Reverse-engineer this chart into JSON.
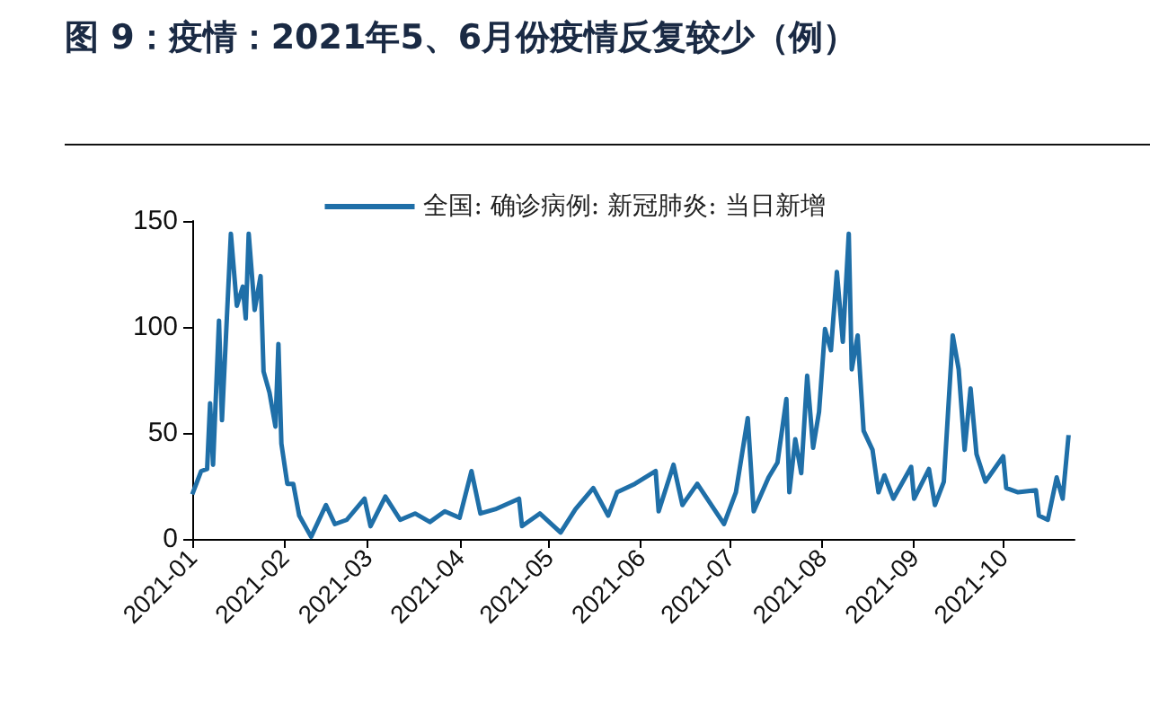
{
  "chart_data": {
    "type": "line",
    "title": "图 9：疫情：2021年5、6月份疫情反复较少（例）",
    "x": [
      "2021-01-01",
      "2021-01-04",
      "2021-01-06",
      "2021-01-07",
      "2021-01-08",
      "2021-01-10",
      "2021-01-11",
      "2021-01-14",
      "2021-01-16",
      "2021-01-18",
      "2021-01-19",
      "2021-01-20",
      "2021-01-22",
      "2021-01-24",
      "2021-01-25",
      "2021-01-27",
      "2021-01-29",
      "2021-01-30",
      "2021-01-31",
      "2021-02-02",
      "2021-02-04",
      "2021-02-06",
      "2021-02-10",
      "2021-02-15",
      "2021-02-18",
      "2021-02-22",
      "2021-02-28",
      "2021-03-02",
      "2021-03-07",
      "2021-03-12",
      "2021-03-17",
      "2021-03-22",
      "2021-03-27",
      "2021-04-01",
      "2021-04-05",
      "2021-04-08",
      "2021-04-13",
      "2021-04-21",
      "2021-04-22",
      "2021-04-28",
      "2021-05-05",
      "2021-05-10",
      "2021-05-16",
      "2021-05-21",
      "2021-05-24",
      "2021-05-30",
      "2021-06-06",
      "2021-06-07",
      "2021-06-12",
      "2021-06-15",
      "2021-06-20",
      "2021-06-29",
      "2021-07-03",
      "2021-07-07",
      "2021-07-09",
      "2021-07-14",
      "2021-07-17",
      "2021-07-20",
      "2021-07-21",
      "2021-07-23",
      "2021-07-25",
      "2021-07-27",
      "2021-07-29",
      "2021-07-31",
      "2021-08-02",
      "2021-08-04",
      "2021-08-06",
      "2021-08-08",
      "2021-08-10",
      "2021-08-11",
      "2021-08-13",
      "2021-08-15",
      "2021-08-18",
      "2021-08-20",
      "2021-08-22",
      "2021-08-25",
      "2021-08-31",
      "2021-09-01",
      "2021-09-06",
      "2021-09-08",
      "2021-09-11",
      "2021-09-14",
      "2021-09-16",
      "2021-09-18",
      "2021-09-20",
      "2021-09-22",
      "2021-09-25",
      "2021-10-01",
      "2021-10-02",
      "2021-10-06",
      "2021-10-12",
      "2021-10-13",
      "2021-10-16",
      "2021-10-19",
      "2021-10-21",
      "2021-10-23"
    ],
    "series": [
      {
        "name": "全国: 确诊病例: 新冠肺炎: 当日新增",
        "color": "#1f6fa8",
        "values": [
          21,
          32,
          33,
          64,
          35,
          103,
          56,
          144,
          110,
          119,
          104,
          144,
          108,
          124,
          79,
          69,
          53,
          92,
          45,
          26,
          26,
          11,
          1,
          16,
          7,
          9,
          19,
          6,
          20,
          9,
          12,
          8,
          13,
          10,
          32,
          12,
          14,
          19,
          6,
          12,
          3,
          14,
          24,
          11,
          22,
          26,
          32,
          13,
          35,
          16,
          26,
          7,
          22,
          57,
          13,
          29,
          36,
          66,
          22,
          47,
          31,
          77,
          43,
          60,
          99,
          89,
          126,
          93,
          144,
          80,
          96,
          51,
          42,
          22,
          30,
          19,
          34,
          19,
          33,
          16,
          27,
          96,
          80,
          42,
          71,
          40,
          27,
          39,
          24,
          22,
          23,
          11,
          9,
          29,
          19,
          49
        ]
      }
    ],
    "xlim": [
      "2021-01-01",
      "2021-10-25"
    ],
    "xticks": [
      "2021-01",
      "2021-02",
      "2021-03",
      "2021-04",
      "2021-05",
      "2021-06",
      "2021-07",
      "2021-08",
      "2021-09",
      "2021-10"
    ],
    "ylim": [
      0,
      150
    ],
    "yticks": [
      0,
      50,
      100,
      150
    ],
    "grid": false,
    "legend": "top",
    "marker": "none",
    "line_style": "solid"
  }
}
